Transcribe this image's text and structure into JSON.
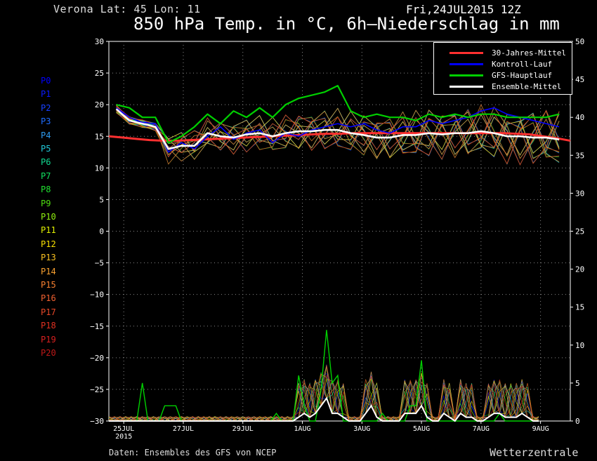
{
  "header": {
    "location": "Verona   Lat: 45 Lon: 11",
    "date": "Fri,24JUL2015 12Z",
    "title": "850 hPa Temp. in °C, 6h–Niederschlag in mm"
  },
  "footer": {
    "source": "Daten: Ensembles des GFS von NCEP",
    "brand": "Wetterzentrale"
  },
  "members": [
    {
      "label": "P0",
      "color": "#0000ff"
    },
    {
      "label": "P1",
      "color": "#0a1aff"
    },
    {
      "label": "P2",
      "color": "#1640ff"
    },
    {
      "label": "P3",
      "color": "#1e6cff"
    },
    {
      "label": "P4",
      "color": "#2e9cf0"
    },
    {
      "label": "P5",
      "color": "#20c8d8"
    },
    {
      "label": "P6",
      "color": "#10d890"
    },
    {
      "label": "P7",
      "color": "#10e060"
    },
    {
      "label": "P8",
      "color": "#20e030"
    },
    {
      "label": "P9",
      "color": "#50e010"
    },
    {
      "label": "P10",
      "color": "#90f010"
    },
    {
      "label": "P11",
      "color": "#e0f000"
    },
    {
      "label": "P12",
      "color": "#f8e000"
    },
    {
      "label": "P13",
      "color": "#f8c020"
    },
    {
      "label": "P14",
      "color": "#f8a030"
    },
    {
      "label": "P15",
      "color": "#f88030"
    },
    {
      "label": "P16",
      "color": "#f06030"
    },
    {
      "label": "P17",
      "color": "#e84828"
    },
    {
      "label": "P18",
      "color": "#e03020"
    },
    {
      "label": "P19",
      "color": "#d82020"
    },
    {
      "label": "P20",
      "color": "#c01818"
    }
  ],
  "chart_data": {
    "type": "line",
    "x_ticks": [
      "25JUL\n2015",
      "27JUL",
      "29JUL",
      "1AUG",
      "3AUG",
      "5AUG",
      "7AUG",
      "9AUG"
    ],
    "x_tick_hours": [
      12,
      60,
      108,
      156,
      204,
      252,
      300,
      348
    ],
    "x_range_hours": [
      0,
      372
    ],
    "ylim_left": [
      -30,
      30
    ],
    "yticks_left": [
      30,
      25,
      20,
      15,
      10,
      5,
      0,
      -5,
      -10,
      -15,
      -20,
      -25,
      -30
    ],
    "ylim_right": [
      0,
      50
    ],
    "yticks_right": [
      50,
      45,
      40,
      35,
      30,
      25,
      20,
      15,
      10,
      5,
      0
    ],
    "grid": true,
    "legend_position": "top-right",
    "legend": [
      {
        "name": "30-Jahres-Mittel",
        "color": "#ff3030"
      },
      {
        "name": "Kontroll-Lauf",
        "color": "#0000ff"
      },
      {
        "name": "GFS-Hauptlauf",
        "color": "#00d000"
      },
      {
        "name": "Ensemble-Mittel",
        "color": "#ffffff"
      }
    ],
    "series": [
      {
        "name": "30-Jahres-Mittel",
        "color": "#ff3030",
        "values": [
          15.0,
          14.8,
          14.6,
          14.4,
          14.3,
          14.3,
          14.4,
          14.5,
          14.6,
          14.7,
          14.8,
          14.9,
          15.0,
          15.1,
          15.2,
          15.3,
          15.4,
          15.4,
          15.5,
          15.5,
          15.5,
          15.5,
          15.5,
          15.5,
          15.5,
          15.5,
          15.5,
          15.5,
          15.5,
          15.5,
          15.4,
          15.3,
          15.0,
          14.7,
          14.3
        ]
      },
      {
        "name": "Kontroll-Lauf",
        "color": "#0000ff",
        "values": [
          19.5,
          18.0,
          17.2,
          17.0,
          12.5,
          14.0,
          13.0,
          15.0,
          16.5,
          14.5,
          15.5,
          16.0,
          14.0,
          15.5,
          15.0,
          16.0,
          16.5,
          17.0,
          16.5,
          17.0,
          16.0,
          15.5,
          16.5,
          16.5,
          17.5,
          17.0,
          17.5,
          18.0,
          19.0,
          19.5,
          18.5,
          18.0,
          17.5,
          17.0,
          16.5
        ]
      },
      {
        "name": "GFS-Hauptlauf",
        "color": "#00d000",
        "values": [
          20.0,
          19.5,
          18.0,
          18.0,
          14.0,
          15.0,
          16.5,
          18.5,
          17.0,
          19.0,
          18.0,
          19.5,
          18.0,
          20.0,
          21.0,
          21.5,
          22.0,
          23.0,
          19.0,
          18.0,
          18.5,
          18.0,
          18.0,
          17.5,
          18.5,
          18.0,
          18.5,
          18.0,
          18.5,
          18.5,
          18.0,
          18.0,
          18.0,
          18.0,
          18.5
        ]
      },
      {
        "name": "Ensemble-Mittel",
        "color": "#ffffff",
        "values": [
          19.3,
          17.5,
          17.0,
          16.5,
          13.0,
          13.5,
          13.5,
          15.5,
          15.0,
          14.8,
          15.3,
          15.5,
          15.0,
          15.5,
          15.8,
          15.8,
          16.0,
          16.0,
          15.5,
          15.2,
          14.8,
          14.8,
          15.2,
          15.2,
          15.5,
          15.3,
          15.5,
          15.5,
          15.8,
          15.5,
          15.0,
          15.0,
          14.8,
          14.8,
          14.5
        ]
      }
    ],
    "precip_series": [
      {
        "name": "GFS-Hauptlauf",
        "color": "#00d000",
        "values": [
          0,
          0,
          0,
          0,
          0,
          0,
          5,
          0,
          0,
          0,
          2,
          2,
          2,
          0,
          0,
          0,
          0,
          0,
          0,
          0,
          0,
          0,
          0,
          0,
          0,
          0,
          0,
          0,
          0,
          0,
          1,
          0,
          0,
          0,
          6,
          2,
          0,
          0,
          4,
          12,
          5,
          6,
          0,
          0,
          0,
          0,
          0,
          0,
          0,
          1,
          0,
          0,
          0,
          0,
          2,
          2,
          8,
          0,
          0,
          0,
          0,
          0,
          0,
          0,
          0,
          0,
          0,
          0,
          0,
          0,
          1,
          0,
          0,
          0,
          0,
          0,
          0,
          0
        ]
      },
      {
        "name": "Ensemble-Mittel",
        "color": "#ffffff",
        "values": [
          0,
          0,
          0,
          0,
          0,
          0,
          0,
          0,
          0,
          0,
          0,
          0,
          0,
          0,
          0,
          0,
          0,
          0,
          0,
          0,
          0,
          0,
          0,
          0,
          0,
          0,
          0,
          0,
          0,
          0,
          0,
          0,
          0,
          0,
          0.5,
          1,
          0.5,
          1,
          2,
          3,
          1,
          1,
          0.5,
          0,
          0,
          0,
          1,
          2,
          0.5,
          0,
          0,
          0,
          0,
          1,
          1,
          1,
          2,
          0.5,
          0,
          0,
          1,
          0.5,
          0,
          1,
          0.5,
          0.5,
          0,
          0,
          0.5,
          1,
          1,
          0.5,
          0.5,
          0.5,
          1,
          0.5,
          0,
          0
        ]
      }
    ]
  }
}
